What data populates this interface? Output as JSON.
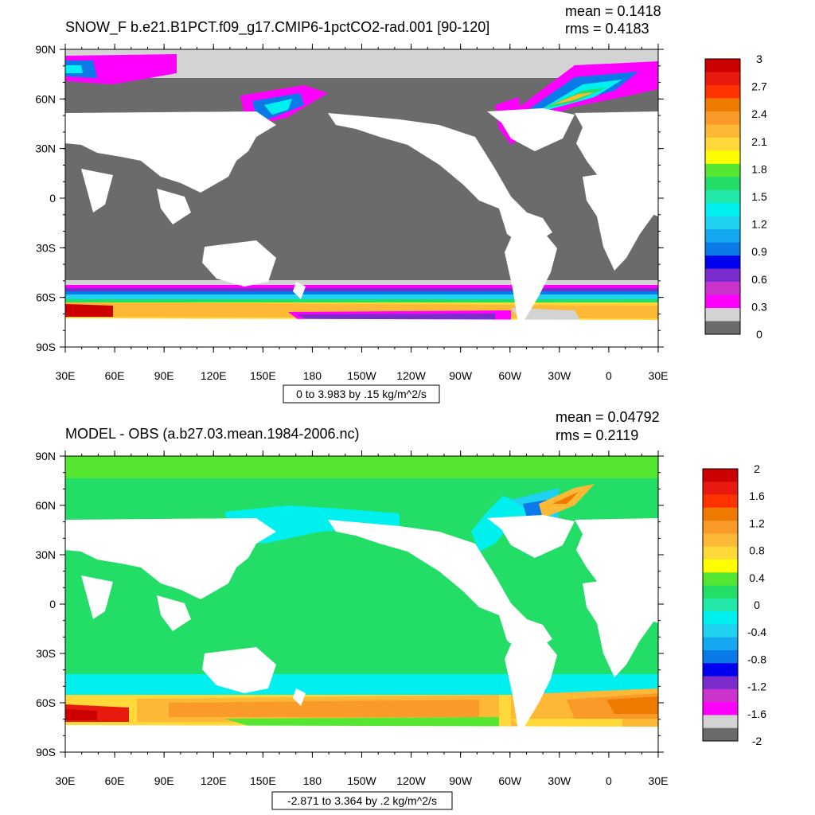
{
  "panels": [
    {
      "id": "top",
      "title": "SNOW_F b.e21.B1PCT.f09_g17.CMIP6-1pctCO2-rad.001 [90-120]",
      "stat_mean": "mean = 0.1418",
      "stat_rms": "rms = 0.4183",
      "lat_labels": [
        "90N",
        "60N",
        "30N",
        "0",
        "30S",
        "60S",
        "90S"
      ],
      "lon_labels": [
        "30E",
        "60E",
        "90E",
        "120E",
        "150E",
        "180",
        "150W",
        "120W",
        "90W",
        "60W",
        "30W",
        "0",
        "30E"
      ],
      "range_label": "0 to 3.983 by .15 kg/m^2/s",
      "colorbar_labels": [
        "3",
        "2.7",
        "2.4",
        "2.1",
        "1.8",
        "1.5",
        "1.2",
        "0.9",
        "0.6",
        "0.3",
        "0"
      ],
      "colorbar_colors": [
        "#cc0000",
        "#e81a0d",
        "#ff3300",
        "#ee7a00",
        "#fa9a28",
        "#fdb836",
        "#ffd83a",
        "#ffff00",
        "#55e632",
        "#22dd66",
        "#22e8aa",
        "#00f0f0",
        "#1ed2f0",
        "#13a8f0",
        "#0a7ae8",
        "#0000f0",
        "#7a2ccc",
        "#cc33cc",
        "#ff00ff",
        "#d3d3d3",
        "#6b6b6b"
      ]
    },
    {
      "id": "bottom",
      "title": "MODEL - OBS (a.b27.03.mean.1984-2006.nc)",
      "stat_mean": "mean = 0.04792",
      "stat_rms": "rms = 0.2119",
      "lat_labels": [
        "90N",
        "60N",
        "30N",
        "0",
        "30S",
        "60S",
        "90S"
      ],
      "lon_labels": [
        "30E",
        "60E",
        "90E",
        "120E",
        "150E",
        "180",
        "150W",
        "120W",
        "90W",
        "60W",
        "30W",
        "0",
        "30E"
      ],
      "range_label": "-2.871 to 3.364 by .2 kg/m^2/s",
      "colorbar_labels": [
        "2",
        "1.6",
        "1.2",
        "0.8",
        "0.4",
        "0",
        "-0.4",
        "-0.8",
        "-1.2",
        "-1.6",
        "-2"
      ],
      "colorbar_colors": [
        "#cc0000",
        "#e81a0d",
        "#ff3300",
        "#ee7a00",
        "#fa9a28",
        "#fdb836",
        "#ffd83a",
        "#ffff00",
        "#55e632",
        "#22dd66",
        "#22e8aa",
        "#00f0f0",
        "#1ed2f0",
        "#13a8f0",
        "#0a7ae8",
        "#0000f0",
        "#7a2ccc",
        "#cc33cc",
        "#ff00ff",
        "#d3d3d3",
        "#6b6b6b"
      ]
    }
  ]
}
